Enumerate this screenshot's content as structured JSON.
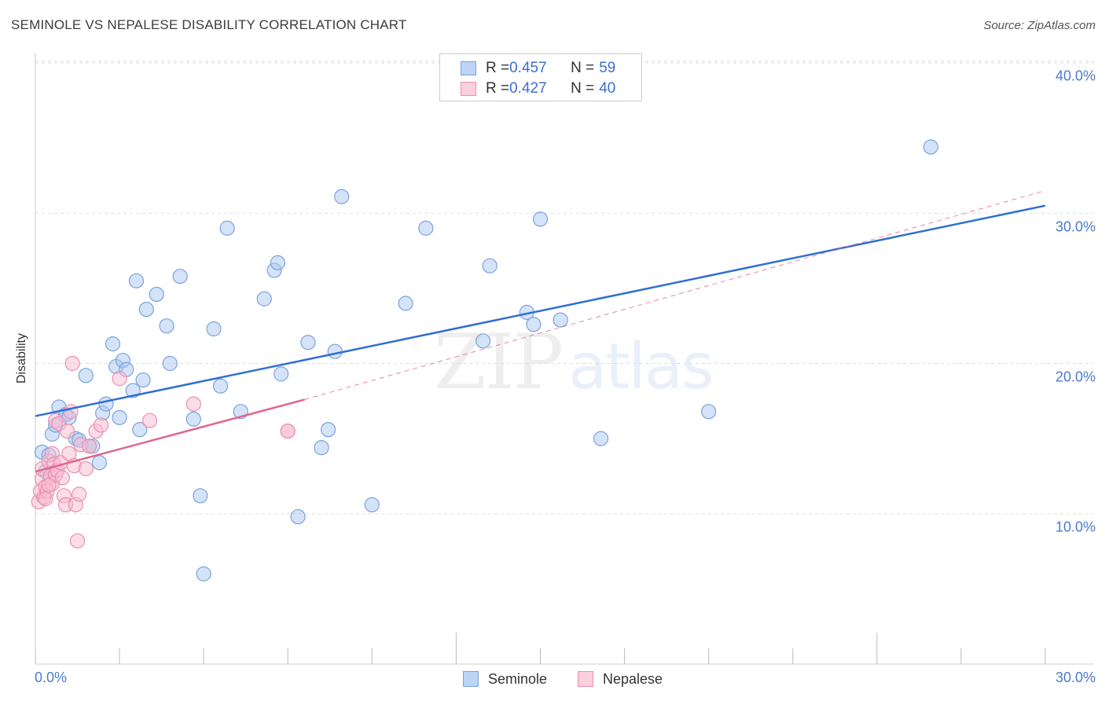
{
  "title": "SEMINOLE VS NEPALESE DISABILITY CORRELATION CHART",
  "source": "Source: ZipAtlas.com",
  "watermark": {
    "zip": "ZIP",
    "atlas": "atlas"
  },
  "legend_top": {
    "rows": [
      {
        "r_label": "R = ",
        "r_value": "0.457",
        "n_label": "N = ",
        "n_value": "59"
      },
      {
        "r_label": "R = ",
        "r_value": "0.427",
        "n_label": "N = ",
        "n_value": "40"
      }
    ]
  },
  "legend_bottom": {
    "seminole": "Seminole",
    "nepalese": "Nepalese"
  },
  "colors": {
    "seminole_fill": "#a9c8f0",
    "seminole_stroke": "#7aa3dd",
    "seminole_line": "#2f6fd0",
    "nepalese_fill": "#f7bcd0",
    "nepalese_stroke": "#ea8fb0",
    "nepalese_line": "#e0668f",
    "tick_text": "#4a7bd0",
    "grid": "#dddddd"
  },
  "chart_data": {
    "type": "scatter",
    "title": "SEMINOLE VS NEPALESE DISABILITY CORRELATION CHART",
    "xlabel": "",
    "ylabel": "Disability",
    "xlim": [
      0,
      30
    ],
    "ylim": [
      0,
      40
    ],
    "x_tick_labels": [
      "0.0%",
      "30.0%"
    ],
    "y_ticks": [
      10,
      20,
      30,
      40
    ],
    "y_tick_labels": [
      "10.0%",
      "20.0%",
      "30.0%",
      "40.0%"
    ],
    "grid": true,
    "legend_position": "top-center",
    "series": [
      {
        "name": "Seminole",
        "R": 0.457,
        "N": 59,
        "trend": {
          "x": [
            0,
            30
          ],
          "y": [
            16.5,
            30.5
          ]
        },
        "trend_extension": null,
        "points": [
          [
            0.2,
            14.1
          ],
          [
            0.3,
            12.8
          ],
          [
            0.4,
            13.9
          ],
          [
            0.5,
            15.3
          ],
          [
            0.6,
            15.9
          ],
          [
            0.7,
            17.1
          ],
          [
            0.9,
            16.6
          ],
          [
            1.0,
            16.4
          ],
          [
            1.2,
            15.0
          ],
          [
            1.3,
            14.9
          ],
          [
            1.5,
            19.2
          ],
          [
            1.6,
            14.5
          ],
          [
            1.7,
            14.5
          ],
          [
            1.9,
            13.4
          ],
          [
            2.0,
            16.7
          ],
          [
            2.1,
            17.3
          ],
          [
            2.3,
            21.3
          ],
          [
            2.4,
            19.8
          ],
          [
            2.5,
            16.4
          ],
          [
            2.6,
            20.2
          ],
          [
            2.7,
            19.6
          ],
          [
            2.9,
            18.2
          ],
          [
            3.0,
            25.5
          ],
          [
            3.1,
            15.6
          ],
          [
            3.2,
            18.9
          ],
          [
            3.3,
            23.6
          ],
          [
            3.6,
            24.6
          ],
          [
            3.9,
            22.5
          ],
          [
            4.0,
            20.0
          ],
          [
            4.3,
            25.8
          ],
          [
            4.7,
            16.3
          ],
          [
            4.9,
            11.2
          ],
          [
            5.0,
            6.0
          ],
          [
            5.3,
            22.3
          ],
          [
            5.5,
            18.5
          ],
          [
            5.7,
            29.0
          ],
          [
            6.1,
            16.8
          ],
          [
            6.8,
            24.3
          ],
          [
            7.1,
            26.2
          ],
          [
            7.2,
            26.7
          ],
          [
            7.3,
            19.3
          ],
          [
            7.8,
            9.8
          ],
          [
            8.1,
            21.4
          ],
          [
            8.5,
            14.4
          ],
          [
            8.7,
            15.6
          ],
          [
            8.9,
            20.8
          ],
          [
            9.1,
            31.1
          ],
          [
            10.0,
            10.6
          ],
          [
            11.0,
            24.0
          ],
          [
            11.6,
            29.0
          ],
          [
            13.3,
            21.5
          ],
          [
            13.5,
            26.5
          ],
          [
            14.6,
            23.4
          ],
          [
            14.8,
            22.6
          ],
          [
            15.0,
            29.6
          ],
          [
            15.6,
            22.9
          ],
          [
            16.8,
            15.0
          ],
          [
            20.0,
            16.8
          ],
          [
            26.6,
            34.4
          ]
        ]
      },
      {
        "name": "Nepalese",
        "R": 0.427,
        "N": 40,
        "trend": {
          "x": [
            0,
            8
          ],
          "y": [
            12.8,
            17.6
          ]
        },
        "trend_extension": {
          "x": [
            8,
            30
          ],
          "y": [
            17.6,
            31.5
          ]
        },
        "points": [
          [
            0.1,
            10.8
          ],
          [
            0.15,
            11.5
          ],
          [
            0.2,
            12.3
          ],
          [
            0.2,
            13.0
          ],
          [
            0.25,
            11.1
          ],
          [
            0.3,
            11.8
          ],
          [
            0.35,
            11.5
          ],
          [
            0.4,
            13.5
          ],
          [
            0.45,
            12.5
          ],
          [
            0.5,
            14.0
          ],
          [
            0.5,
            12.0
          ],
          [
            0.55,
            13.3
          ],
          [
            0.6,
            12.6
          ],
          [
            0.6,
            16.2
          ],
          [
            0.65,
            12.9
          ],
          [
            0.7,
            16.0
          ],
          [
            0.75,
            13.4
          ],
          [
            0.8,
            12.4
          ],
          [
            0.85,
            11.2
          ],
          [
            0.9,
            10.6
          ],
          [
            0.95,
            15.5
          ],
          [
            1.0,
            14.0
          ],
          [
            1.05,
            16.8
          ],
          [
            1.1,
            20.0
          ],
          [
            1.15,
            13.2
          ],
          [
            1.2,
            10.6
          ],
          [
            1.25,
            8.2
          ],
          [
            1.3,
            11.3
          ],
          [
            1.35,
            14.6
          ],
          [
            1.5,
            13.0
          ],
          [
            1.6,
            14.5
          ],
          [
            1.8,
            15.5
          ],
          [
            1.95,
            15.9
          ],
          [
            2.5,
            19.0
          ],
          [
            3.4,
            16.2
          ],
          [
            4.7,
            17.3
          ],
          [
            7.5,
            15.5
          ],
          [
            7.5,
            15.5
          ],
          [
            0.3,
            11.0
          ],
          [
            0.4,
            11.9
          ]
        ]
      }
    ]
  }
}
